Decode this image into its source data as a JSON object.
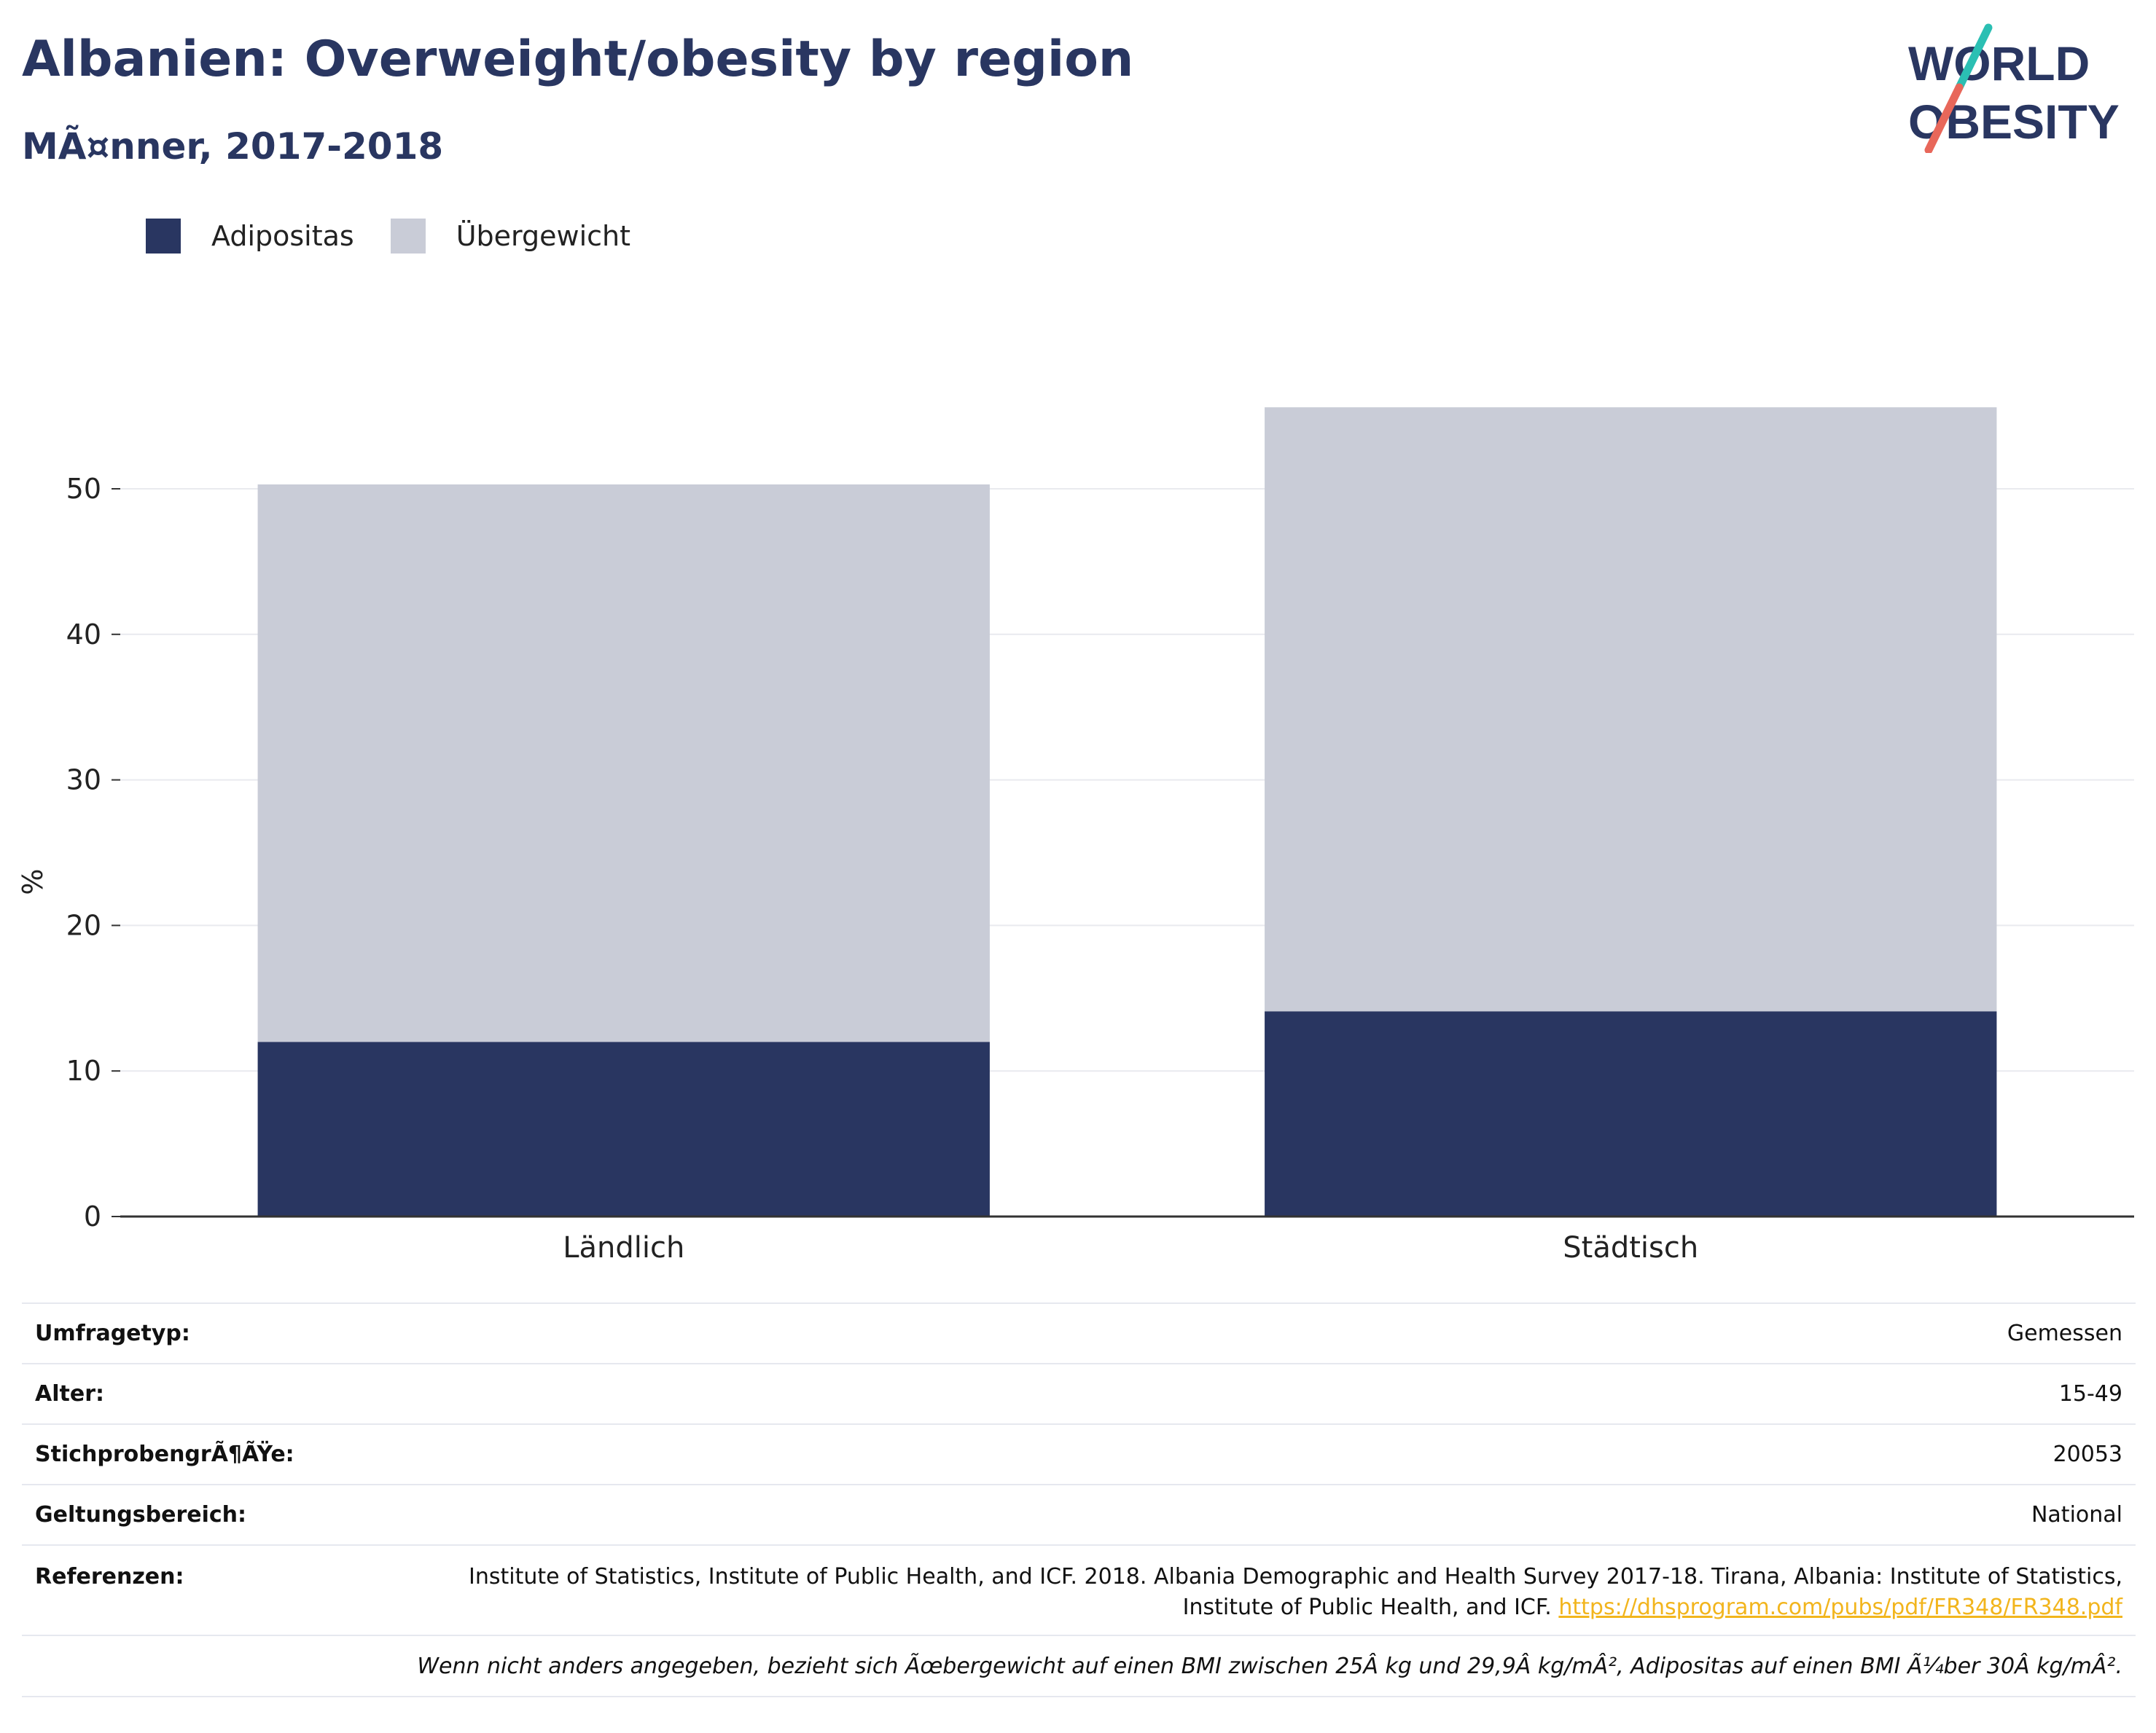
{
  "header": {
    "title": "Albanien: Overweight/obesity by region",
    "subtitle": "MÃ¤nner, 2017-2018"
  },
  "logo": {
    "line1": "WORLD",
    "line2": "OBESITY",
    "text_color": "#293661",
    "accent_teal": "#2bbfb3",
    "accent_coral": "#e8675a"
  },
  "colors": {
    "adipositas": "#293661",
    "uebergewicht": "#c9ccd7"
  },
  "legend": [
    {
      "label": "Adipositas",
      "color": "#293661"
    },
    {
      "label": "Übergewicht",
      "color": "#c9ccd7"
    }
  ],
  "chart_data": {
    "type": "bar",
    "stacked": true,
    "categories": [
      "Ländlich",
      "Städtisch"
    ],
    "series": [
      {
        "name": "Adipositas",
        "values": [
          12.0,
          14.1
        ]
      },
      {
        "name": "Übergewicht",
        "values": [
          38.3,
          41.5
        ]
      }
    ],
    "ylabel": "%",
    "ylim": [
      0,
      58
    ],
    "yticks": [
      0,
      10,
      20,
      30,
      40,
      50
    ],
    "grid": true,
    "legend_position": "top-left"
  },
  "info": {
    "survey_type": {
      "label": "Umfragetyp:",
      "value": "Gemessen"
    },
    "age": {
      "label": "Alter:",
      "value": "15-49"
    },
    "sample_size": {
      "label": "StichprobengrÃ¶ÃŸe:",
      "value": "20053"
    },
    "scope": {
      "label": "Geltungsbereich:",
      "value": "National"
    },
    "references": {
      "label": "Referenzen:",
      "text": "Institute of Statistics, Institute of Public Health, and ICF. 2018. Albania Demographic and Health Survey 2017-18. Tirana, Albania: Institute of Statistics, Institute of Public Health, and ICF.",
      "link": "https://dhsprogram.com/pubs/pdf/FR348/FR348.pdf"
    },
    "note": "Wenn nicht anders angegeben, bezieht sich Ãœbergewicht auf einen BMI zwischen 25Â kg und 29,9Â kg/mÂ², Adipositas auf einen BMI Ã¼ber 30Â kg/mÂ²."
  }
}
